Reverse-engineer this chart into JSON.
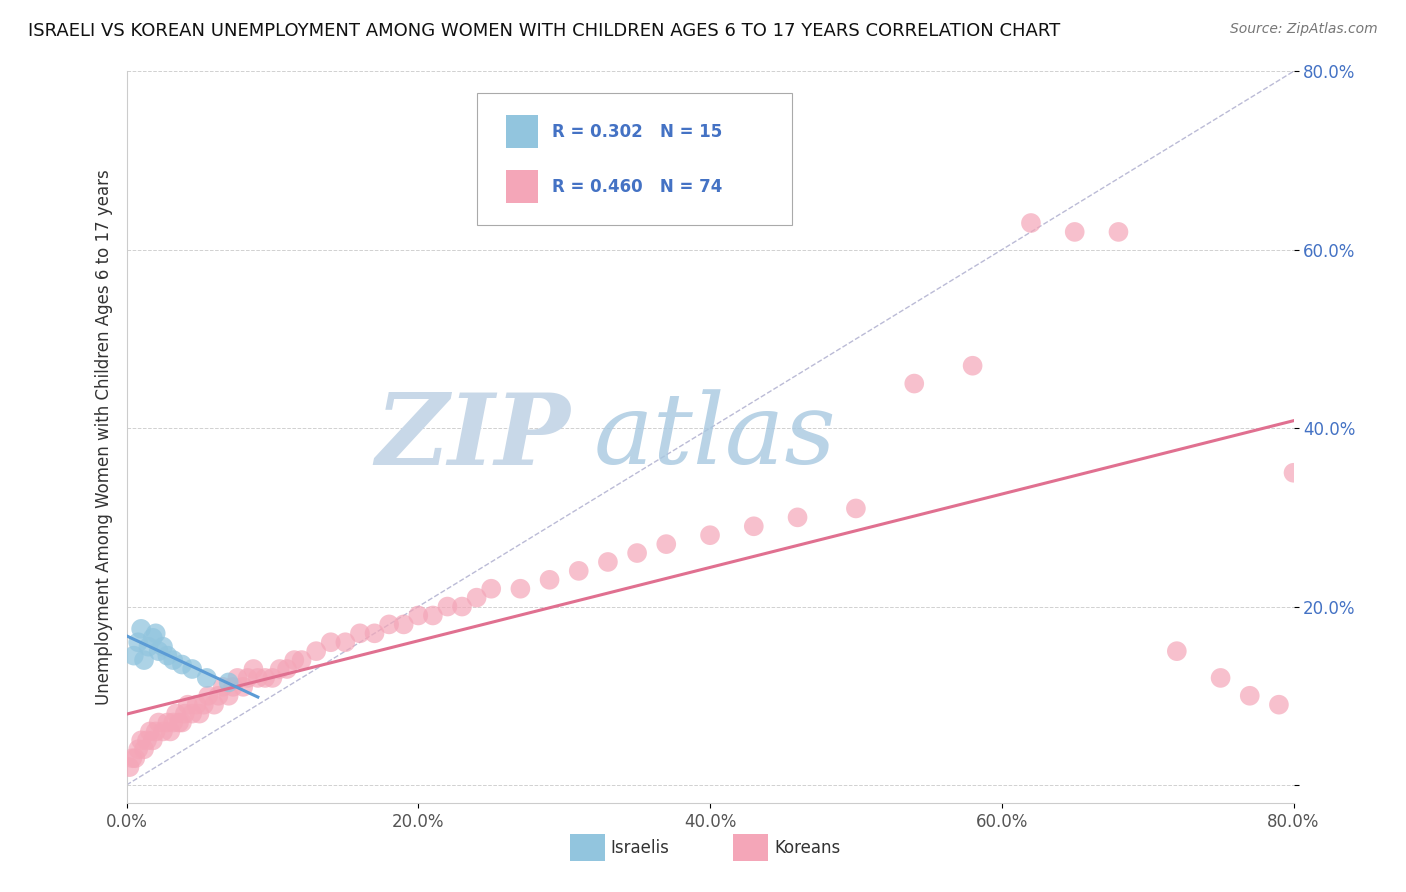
{
  "title": "ISRAELI VS KOREAN UNEMPLOYMENT AMONG WOMEN WITH CHILDREN AGES 6 TO 17 YEARS CORRELATION CHART",
  "source": "Source: ZipAtlas.com",
  "ylabel": "Unemployment Among Women with Children Ages 6 to 17 years",
  "xlim": [
    0.0,
    0.8
  ],
  "ylim": [
    -0.02,
    0.8
  ],
  "xticks": [
    0.0,
    0.2,
    0.4,
    0.6,
    0.8
  ],
  "yticks": [
    0.0,
    0.2,
    0.4,
    0.6,
    0.8
  ],
  "xticklabels": [
    "0.0%",
    "20.0%",
    "40.0%",
    "60.0%",
    "80.0%"
  ],
  "yticklabels": [
    "",
    "20.0%",
    "40.0%",
    "60.0%",
    "80.0%"
  ],
  "israeli_R": 0.302,
  "israeli_N": 15,
  "korean_R": 0.46,
  "korean_N": 74,
  "israeli_color": "#92c5de",
  "korean_color": "#f4a6b8",
  "israeli_line_color": "#5b9bd5",
  "korean_line_color": "#e07090",
  "diagonal_color": "#aaaacc",
  "legend_R_color": "#4472c4",
  "watermark_zip_color": "#c8d8e8",
  "watermark_atlas_color": "#a8c8e0",
  "background_color": "#ffffff",
  "israeli_x": [
    0.005,
    0.008,
    0.01,
    0.012,
    0.015,
    0.018,
    0.02,
    0.022,
    0.025,
    0.028,
    0.032,
    0.038,
    0.045,
    0.055,
    0.07
  ],
  "israeli_y": [
    0.145,
    0.16,
    0.175,
    0.14,
    0.155,
    0.165,
    0.17,
    0.15,
    0.155,
    0.145,
    0.14,
    0.135,
    0.13,
    0.12,
    0.115
  ],
  "korean_x": [
    0.002,
    0.004,
    0.006,
    0.008,
    0.01,
    0.012,
    0.014,
    0.016,
    0.018,
    0.02,
    0.022,
    0.025,
    0.028,
    0.03,
    0.032,
    0.034,
    0.036,
    0.038,
    0.04,
    0.042,
    0.045,
    0.048,
    0.05,
    0.053,
    0.056,
    0.06,
    0.063,
    0.066,
    0.07,
    0.073,
    0.076,
    0.08,
    0.083,
    0.087,
    0.09,
    0.095,
    0.1,
    0.105,
    0.11,
    0.115,
    0.12,
    0.13,
    0.14,
    0.15,
    0.16,
    0.17,
    0.18,
    0.19,
    0.2,
    0.21,
    0.22,
    0.23,
    0.24,
    0.25,
    0.27,
    0.29,
    0.31,
    0.33,
    0.35,
    0.37,
    0.4,
    0.43,
    0.46,
    0.5,
    0.54,
    0.58,
    0.62,
    0.65,
    0.68,
    0.72,
    0.75,
    0.77,
    0.79,
    0.8
  ],
  "korean_y": [
    0.02,
    0.03,
    0.03,
    0.04,
    0.05,
    0.04,
    0.05,
    0.06,
    0.05,
    0.06,
    0.07,
    0.06,
    0.07,
    0.06,
    0.07,
    0.08,
    0.07,
    0.07,
    0.08,
    0.09,
    0.08,
    0.09,
    0.08,
    0.09,
    0.1,
    0.09,
    0.1,
    0.11,
    0.1,
    0.11,
    0.12,
    0.11,
    0.12,
    0.13,
    0.12,
    0.12,
    0.12,
    0.13,
    0.13,
    0.14,
    0.14,
    0.15,
    0.16,
    0.16,
    0.17,
    0.17,
    0.18,
    0.18,
    0.19,
    0.19,
    0.2,
    0.2,
    0.21,
    0.22,
    0.22,
    0.23,
    0.24,
    0.25,
    0.26,
    0.27,
    0.28,
    0.29,
    0.3,
    0.31,
    0.45,
    0.47,
    0.63,
    0.62,
    0.62,
    0.15,
    0.12,
    0.1,
    0.09,
    0.35
  ]
}
